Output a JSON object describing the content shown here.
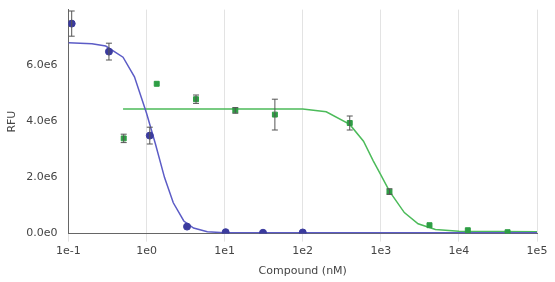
{
  "chart_data": {
    "type": "scatter",
    "x_label": "Compound (nM)",
    "y_label": "RFU",
    "log": "x",
    "grid": "x",
    "xlim": [
      0.1,
      100000
    ],
    "xticks": [
      {
        "value": 0.1,
        "label": "1e-1"
      },
      {
        "value": 1,
        "label": "1e0"
      },
      {
        "value": 10,
        "label": "1e1"
      },
      {
        "value": 100,
        "label": "1e2"
      },
      {
        "value": 1000,
        "label": "1e3"
      },
      {
        "value": 10000,
        "label": "1e4"
      },
      {
        "value": 100000,
        "label": "1e5"
      }
    ],
    "ylim": [
      0,
      8000000
    ],
    "yticks": [
      {
        "value": 0,
        "label": "0.0e0"
      },
      {
        "value": 2000000,
        "label": "2.0e6"
      },
      {
        "value": 4000000,
        "label": "4.0e6"
      },
      {
        "value": 6000000,
        "label": "6.0e6"
      }
    ],
    "series": [
      {
        "type": "scatter",
        "color": "#3b3b9e",
        "marker": "circle",
        "x": [
          0.11,
          0.33,
          1.1,
          3.3,
          10.3,
          31,
          100
        ],
        "values": [
          7500000,
          6500000,
          3500000,
          250000,
          50000,
          30000,
          40000
        ],
        "errors": [
          450000,
          300000,
          300000,
          0,
          0,
          0,
          0
        ]
      },
      {
        "type": "line",
        "color": "#5c5cc6",
        "line_style": "solid",
        "x": [
          0.1,
          0.2,
          0.3,
          0.5,
          0.7,
          1,
          1.3,
          1.7,
          2.2,
          3,
          4,
          6,
          10,
          100,
          100000
        ],
        "values": [
          6820000,
          6780000,
          6700000,
          6300000,
          5600000,
          4300000,
          3200000,
          2000000,
          1100000,
          450000,
          200000,
          70000,
          30000,
          30000,
          30000
        ]
      },
      {
        "type": "scatter",
        "color": "#2e9e44",
        "marker": "square",
        "x": [
          0.51,
          1.35,
          4.3,
          13.7,
          44,
          400,
          1290,
          4200,
          13000,
          42000
        ],
        "values": [
          3400000,
          5350000,
          4800000,
          4400000,
          4250000,
          3950000,
          1500000,
          300000,
          120000,
          50000
        ],
        "errors": [
          150000,
          0,
          150000,
          100000,
          550000,
          250000,
          100000,
          0,
          0,
          0
        ]
      },
      {
        "type": "line",
        "color": "#4cbb5a",
        "line_style": "solid",
        "x": [
          0.5,
          1,
          10,
          100,
          200,
          400,
          600,
          800,
          1000,
          1300,
          2000,
          3000,
          5000,
          10000,
          100000
        ],
        "values": [
          4450000,
          4450000,
          4450000,
          4450000,
          4350000,
          3900000,
          3300000,
          2600000,
          2100000,
          1500000,
          750000,
          350000,
          150000,
          80000,
          70000
        ]
      }
    ]
  }
}
